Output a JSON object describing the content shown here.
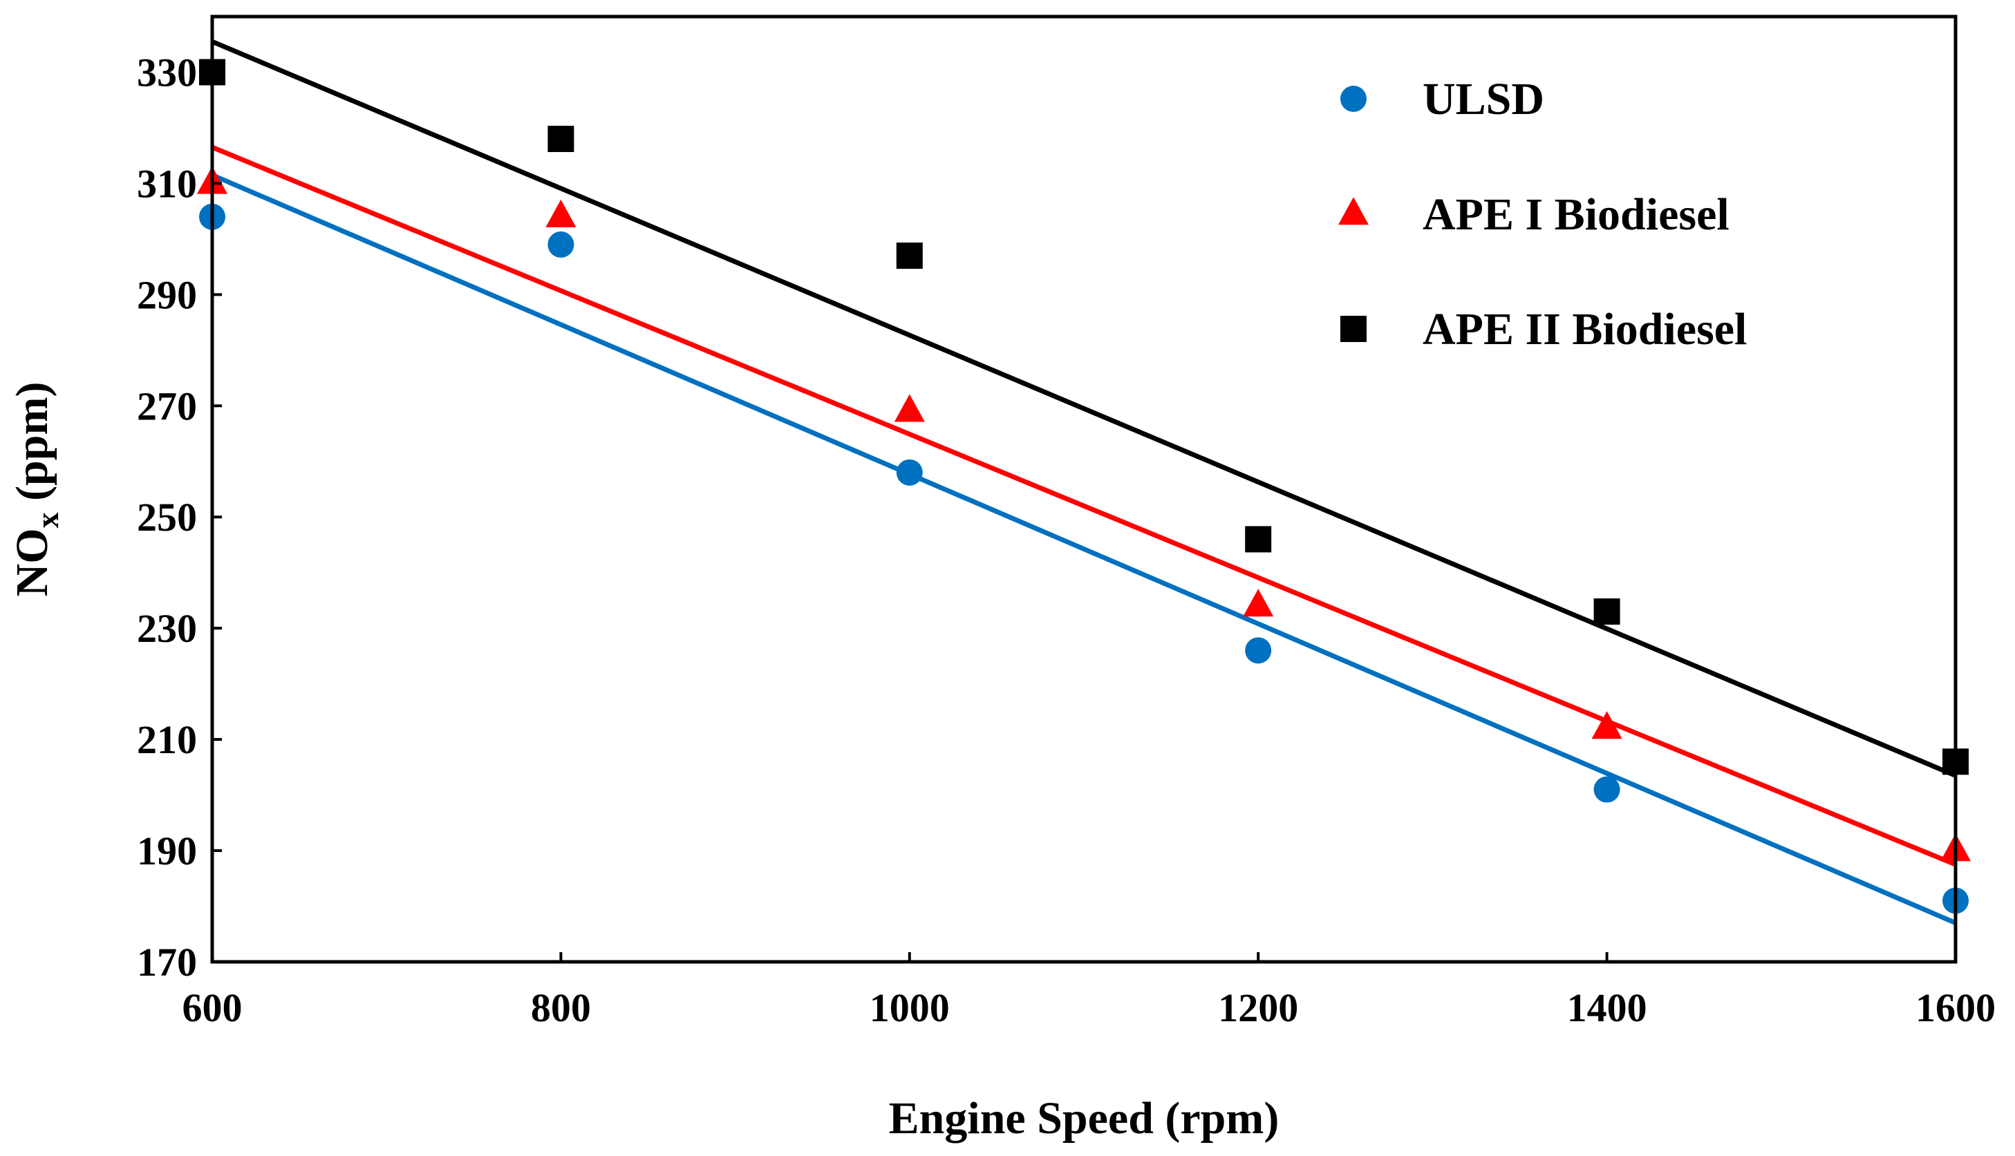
{
  "chart_data": {
    "type": "scatter",
    "title": "",
    "xlabel": "Engine Speed (rpm)",
    "ylabel": "NO",
    "ylabel_subscript": "x",
    "ylabel_suffix": " (ppm)",
    "xlim": [
      600,
      1600
    ],
    "ylim": [
      170,
      340
    ],
    "xticks": [
      600,
      800,
      1000,
      1200,
      1400,
      1600
    ],
    "yticks": [
      170,
      190,
      210,
      230,
      250,
      270,
      290,
      310,
      330
    ],
    "grid": false,
    "legend_position": "top-right",
    "x": [
      600,
      800,
      1000,
      1200,
      1400,
      1600
    ],
    "series": [
      {
        "name": "ULSD",
        "marker": "circle",
        "color": "#0070C0",
        "values": [
          304,
          299,
          258,
          226,
          201,
          181
        ],
        "trendline": {
          "type": "linear",
          "start": [
            600,
            311.5
          ],
          "end": [
            1600,
            177
          ]
        }
      },
      {
        "name": "APE I Biodiesel",
        "marker": "triangle",
        "color": "#FF0000",
        "values": [
          310,
          304,
          269,
          234,
          212,
          190
        ],
        "trendline": {
          "type": "linear",
          "start": [
            600,
            316.5
          ],
          "end": [
            1600,
            187.5
          ]
        }
      },
      {
        "name": "APE II Biodiesel",
        "marker": "square",
        "color": "#000000",
        "values": [
          330,
          318,
          297,
          246,
          233,
          206
        ],
        "trendline": {
          "type": "linear",
          "start": [
            600,
            335.5
          ],
          "end": [
            1600,
            203.5
          ]
        }
      }
    ]
  }
}
